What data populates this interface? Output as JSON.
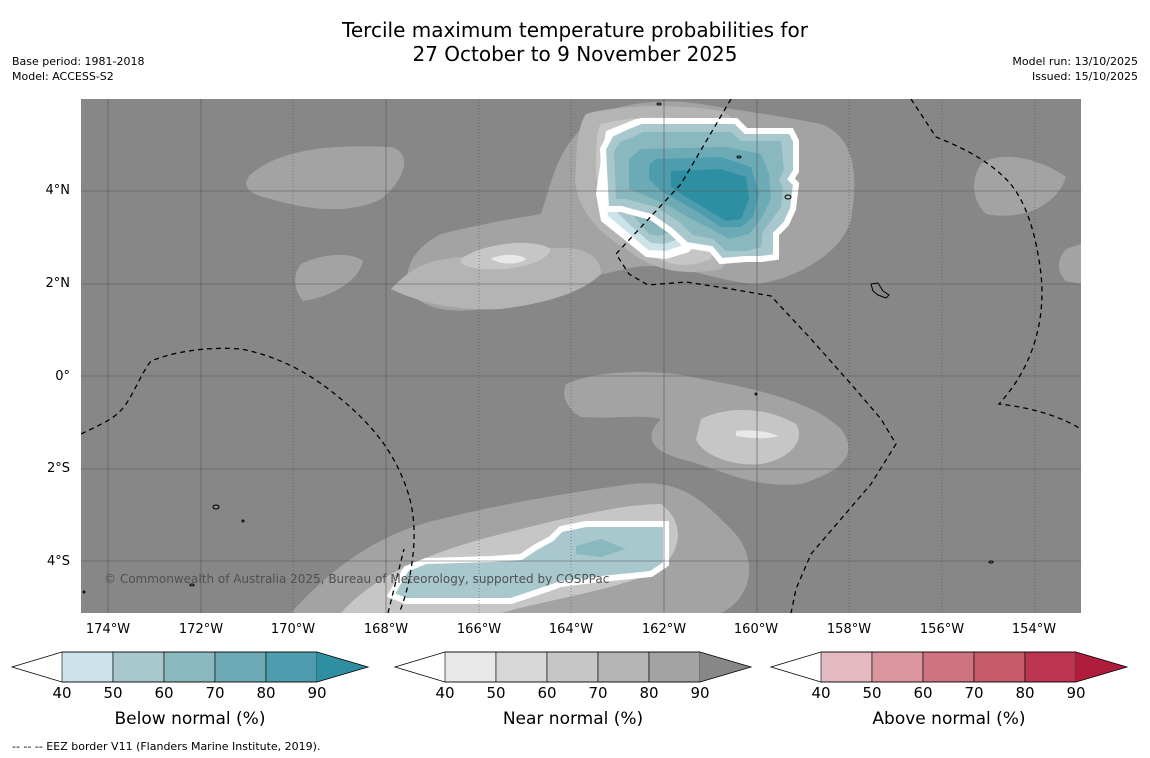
{
  "title": {
    "line1": "Tercile maximum temperature probabilities for",
    "line2": "27 October to 9 November 2025"
  },
  "meta_left": {
    "base_period": "Base period: 1981-2018",
    "model": "Model: ACCESS-S2"
  },
  "meta_right": {
    "model_run": "Model run: 13/10/2025",
    "issued": "Issued: 15/10/2025"
  },
  "map": {
    "latitude_ticks": [
      "4°N",
      "2°N",
      "0°",
      "2°S",
      "4°S"
    ],
    "longitude_ticks": [
      "174°W",
      "172°W",
      "170°W",
      "168°W",
      "166°W",
      "164°W",
      "162°W",
      "160°W",
      "158°W",
      "156°W",
      "154°W"
    ],
    "copyright": "© Commonwealth of Australia 2025, Bureau of Meteorology, supported by COSPPac",
    "background_color": "#878787"
  },
  "colorbars": [
    {
      "title": "Below normal (%)",
      "labels": [
        "40",
        "50",
        "60",
        "70",
        "80",
        "90"
      ],
      "colors": [
        "#ffffff",
        "#cce3ea",
        "#a8c8cd",
        "#8ab8bf",
        "#6caab6",
        "#4d9daf",
        "#2f8fa2"
      ]
    },
    {
      "title": "Near normal (%)",
      "labels": [
        "40",
        "50",
        "60",
        "70",
        "80",
        "90"
      ],
      "colors": [
        "#ffffff",
        "#e8e8e8",
        "#d7d7d7",
        "#c6c6c6",
        "#b4b4b4",
        "#a3a3a3",
        "#878787"
      ]
    },
    {
      "title": "Above normal (%)",
      "labels": [
        "40",
        "50",
        "60",
        "70",
        "80",
        "90"
      ],
      "colors": [
        "#ffffff",
        "#e4b9bf",
        "#da959d",
        "#cf737e",
        "#c55a68",
        "#bc3550",
        "#b01d3c"
      ]
    }
  ],
  "footnote": "--  --  -- EEZ border V11 (Flanders Marine Institute, 2019)."
}
